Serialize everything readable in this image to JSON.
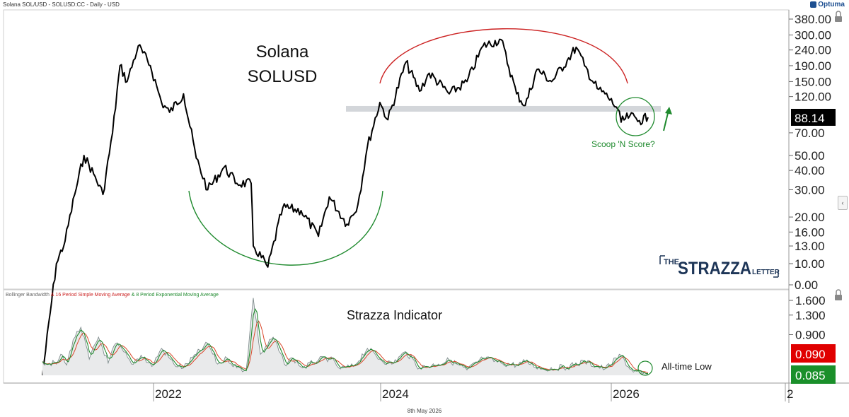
{
  "header": {
    "title": "Solana SOL/USD - SOLUSD:CC - Daily - USD",
    "brand": "Optuma"
  },
  "footer": {
    "date": "8th May 2026"
  },
  "colors": {
    "price_line": "#000000",
    "band": "#d3d6da",
    "red_arc": "#cc2222",
    "green_arc": "#1f8a2e",
    "bbw_line": "#7f8c8d",
    "sma_line": "#d9482b",
    "ema_line": "#1f8a2e",
    "bbw_fill": "#e9eaeb",
    "last_price_bg": "#000000",
    "sma_value_bg": "#e00000",
    "ema_value_bg": "#1a8f2a"
  },
  "chart_data": [
    {
      "type": "line",
      "title": "Solana SOLUSD",
      "title_lines": [
        "Solana",
        "SOLUSD"
      ],
      "scale": "log",
      "y_ticks": [
        "380.00",
        "300.00",
        "240.00",
        "190.00",
        "150.00",
        "120.00",
        "70.00",
        "50.00",
        "40.00",
        "30.00",
        "20.00",
        "16.00",
        "13.00",
        "10.00",
        "0.00"
      ],
      "last_value": "88.14",
      "x_ticks": [
        "2022",
        "2024",
        "2026",
        "2"
      ],
      "series": [
        {
          "values": [
            [
              "2021-01-01",
              1.9
            ],
            [
              "2021-02-15",
              10
            ],
            [
              "2021-03-15",
              14
            ],
            [
              "2021-04-15",
              28
            ],
            [
              "2021-05-15",
              50
            ],
            [
              "2021-06-15",
              38
            ],
            [
              "2021-07-15",
              28
            ],
            [
              "2021-08-15",
              70
            ],
            [
              "2021-09-08",
              190
            ],
            [
              "2021-10-01",
              150
            ],
            [
              "2021-11-06",
              255
            ],
            [
              "2021-12-15",
              190
            ],
            [
              "2022-01-20",
              110
            ],
            [
              "2022-02-15",
              95
            ],
            [
              "2022-04-01",
              125
            ],
            [
              "2022-05-12",
              48
            ],
            [
              "2022-06-18",
              30
            ],
            [
              "2022-08-10",
              42
            ],
            [
              "2022-09-20",
              33
            ],
            [
              "2022-11-05",
              33
            ],
            [
              "2022-11-12",
              13
            ],
            [
              "2022-12-29",
              9.5
            ],
            [
              "2023-02-15",
              23
            ],
            [
              "2023-04-15",
              22
            ],
            [
              "2023-06-10",
              15
            ],
            [
              "2023-07-15",
              27
            ],
            [
              "2023-09-10",
              18
            ],
            [
              "2023-10-15",
              24
            ],
            [
              "2023-11-15",
              57
            ],
            [
              "2023-12-25",
              110
            ],
            [
              "2024-01-20",
              85
            ],
            [
              "2024-03-18",
              200
            ],
            [
              "2024-05-01",
              130
            ],
            [
              "2024-06-01",
              170
            ],
            [
              "2024-08-05",
              125
            ],
            [
              "2024-10-01",
              150
            ],
            [
              "2024-11-22",
              255
            ],
            [
              "2025-01-19",
              280
            ],
            [
              "2025-03-10",
              125
            ],
            [
              "2025-04-07",
              105
            ],
            [
              "2025-05-15",
              180
            ],
            [
              "2025-07-01",
              150
            ],
            [
              "2025-08-20",
              205
            ],
            [
              "2025-09-18",
              250
            ],
            [
              "2025-10-15",
              190
            ],
            [
              "2025-11-25",
              135
            ],
            [
              "2025-12-20",
              125
            ],
            [
              "2026-01-30",
              100
            ],
            [
              "2026-02-10",
              82
            ],
            [
              "2026-03-10",
              90
            ],
            [
              "2026-04-10",
              84
            ],
            [
              "2026-05-08",
              88.14
            ]
          ]
        }
      ],
      "annotations": {
        "band_level": 100,
        "scoop_label": "Scoop 'N Score?",
        "watermark": [
          "THE",
          "STRAZZA",
          "LETTER"
        ]
      }
    },
    {
      "type": "line",
      "title": "Strazza Indicator",
      "legend": [
        "Bollinger Bandwidth",
        "& 16 Period Simple Moving Average",
        "& 8 Period Exponential Moving Average"
      ],
      "y_ticks": [
        "1.600",
        "1.300",
        "0.900"
      ],
      "values_shown": {
        "sma": "0.090",
        "ema": "0.085"
      },
      "annotation": "All-time Low",
      "series": [
        {
          "name": "Bollinger Bandwidth",
          "values": [
            [
              "2021-01-01",
              0.35
            ],
            [
              "2021-02-15",
              0.3
            ],
            [
              "2021-03-01",
              0.5
            ],
            [
              "2021-03-20",
              0.28
            ],
            [
              "2021-04-10",
              0.8
            ],
            [
              "2021-05-05",
              1.05
            ],
            [
              "2021-06-01",
              0.4
            ],
            [
              "2021-07-01",
              0.85
            ],
            [
              "2021-08-01",
              0.32
            ],
            [
              "2021-08-25",
              0.72
            ],
            [
              "2021-09-20",
              0.55
            ],
            [
              "2021-10-15",
              0.3
            ],
            [
              "2021-11-15",
              0.48
            ],
            [
              "2021-12-20",
              0.25
            ],
            [
              "2022-01-20",
              0.62
            ],
            [
              "2022-03-01",
              0.3
            ],
            [
              "2022-04-01",
              0.22
            ],
            [
              "2022-05-12",
              0.5
            ],
            [
              "2022-06-18",
              0.72
            ],
            [
              "2022-07-20",
              0.3
            ],
            [
              "2022-08-20",
              0.42
            ],
            [
              "2022-09-20",
              0.22
            ],
            [
              "2022-10-20",
              0.18
            ],
            [
              "2022-11-12",
              1.65
            ],
            [
              "2022-12-05",
              0.5
            ],
            [
              "2023-01-15",
              0.85
            ],
            [
              "2023-02-20",
              0.3
            ],
            [
              "2023-03-20",
              0.42
            ],
            [
              "2023-04-20",
              0.22
            ],
            [
              "2023-06-10",
              0.38
            ],
            [
              "2023-07-15",
              0.42
            ],
            [
              "2023-08-20",
              0.2
            ],
            [
              "2023-10-01",
              0.25
            ],
            [
              "2023-11-15",
              0.62
            ],
            [
              "2023-12-25",
              0.4
            ],
            [
              "2024-02-01",
              0.3
            ],
            [
              "2024-03-18",
              0.55
            ],
            [
              "2024-05-01",
              0.22
            ],
            [
              "2024-07-01",
              0.3
            ],
            [
              "2024-08-05",
              0.38
            ],
            [
              "2024-10-01",
              0.18
            ],
            [
              "2024-11-22",
              0.42
            ],
            [
              "2025-01-19",
              0.32
            ],
            [
              "2025-03-10",
              0.28
            ],
            [
              "2025-04-07",
              0.35
            ],
            [
              "2025-06-01",
              0.2
            ],
            [
              "2025-08-20",
              0.24
            ],
            [
              "2025-10-15",
              0.35
            ],
            [
              "2025-12-20",
              0.2
            ],
            [
              "2026-02-10",
              0.48
            ],
            [
              "2026-03-10",
              0.2
            ],
            [
              "2026-04-20",
              0.09
            ],
            [
              "2026-05-08",
              0.085
            ]
          ]
        }
      ]
    }
  ]
}
